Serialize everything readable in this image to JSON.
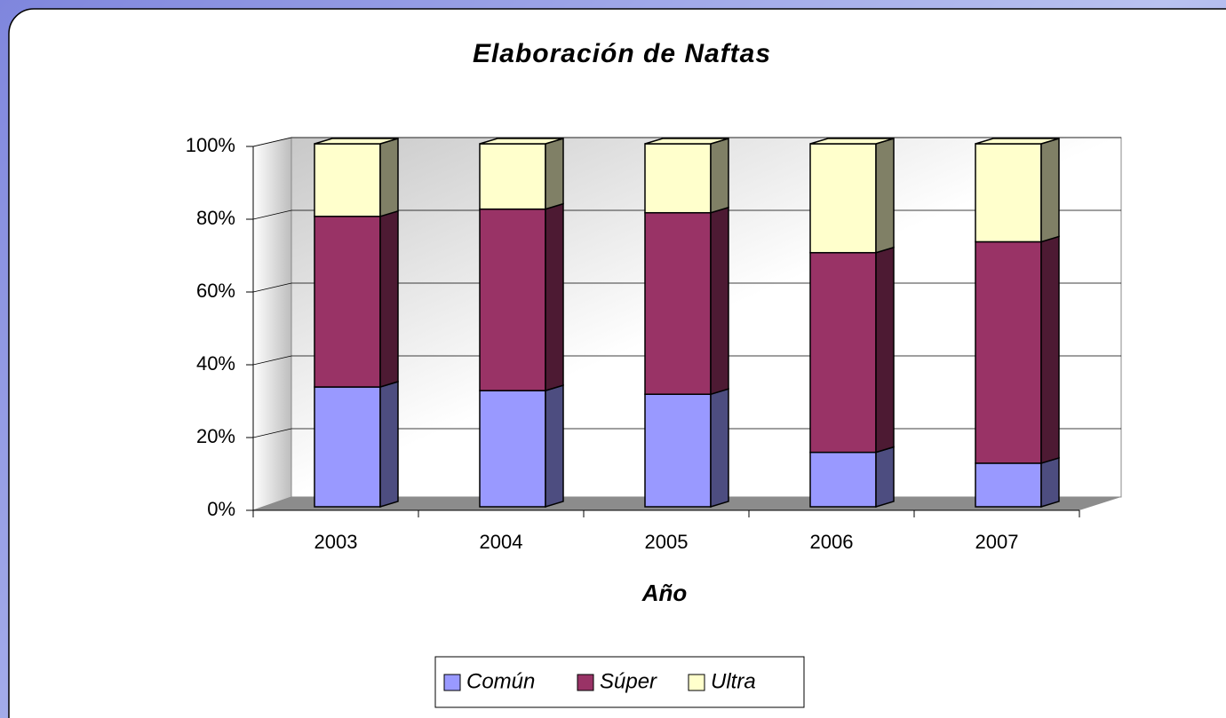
{
  "chart_data": {
    "type": "bar",
    "stacked": true,
    "title": "Elaboración de Naftas",
    "x_label": "Año",
    "categories": [
      "2003",
      "2004",
      "2005",
      "2006",
      "2007"
    ],
    "series": [
      {
        "name": "Común",
        "color": "#9999ff",
        "values": [
          33,
          32,
          31,
          15,
          12
        ]
      },
      {
        "name": "Súper",
        "color": "#993366",
        "values": [
          47,
          50,
          50,
          55,
          61
        ]
      },
      {
        "name": "Ultra",
        "color": "#ffffcc",
        "values": [
          20,
          18,
          19,
          30,
          27
        ]
      }
    ],
    "ylim": [
      0,
      100
    ],
    "yticks": [
      {
        "value": 0,
        "label": "0%"
      },
      {
        "value": 20,
        "label": "20%"
      },
      {
        "value": 40,
        "label": "40%"
      },
      {
        "value": 60,
        "label": "60%"
      },
      {
        "value": 80,
        "label": "80%"
      },
      {
        "value": 100,
        "label": "100%"
      }
    ],
    "grid": true,
    "legend": "bottom"
  }
}
